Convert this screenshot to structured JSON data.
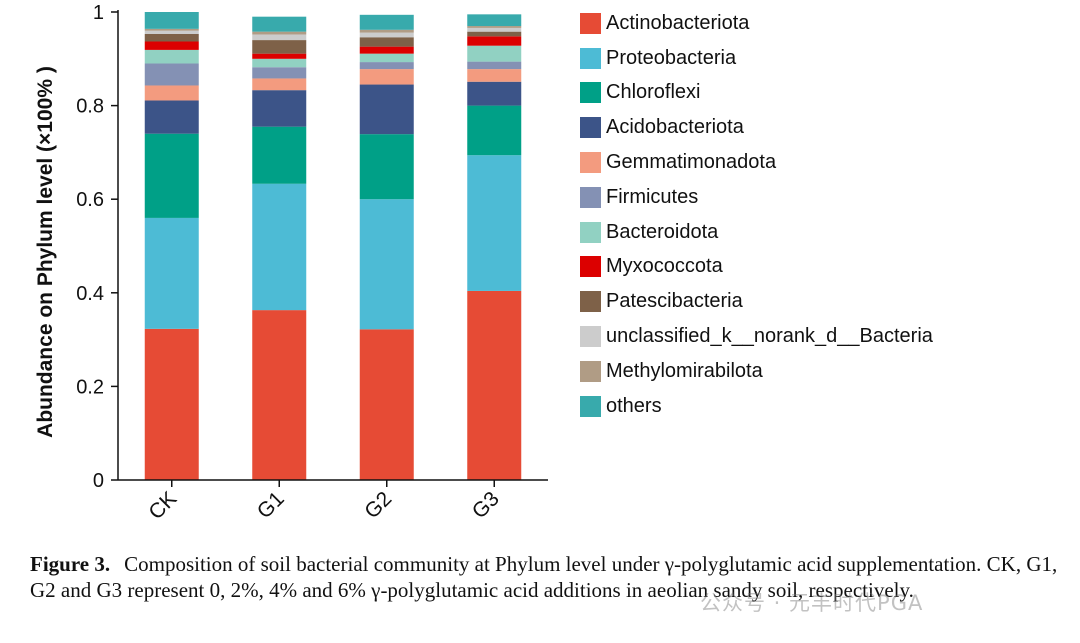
{
  "chart_data": {
    "type": "bar",
    "stacked": true,
    "title": "",
    "xlabel": "",
    "ylabel": "Abundance on Phylum level (×100% )",
    "ylim": [
      0,
      1
    ],
    "yticks": [
      "0",
      "0.2",
      "0.4",
      "0.6",
      "0.8",
      "1"
    ],
    "categories": [
      "CK",
      "G1",
      "G2",
      "G3"
    ],
    "legend_position": "right",
    "series": [
      {
        "name": "Actinobacteriota",
        "color": "#e64b35",
        "values": [
          0.323,
          0.363,
          0.322,
          0.404
        ]
      },
      {
        "name": "Proteobacteria",
        "color": "#4dbbd5",
        "values": [
          0.237,
          0.27,
          0.278,
          0.29
        ]
      },
      {
        "name": "Chloroflexi",
        "color": "#00a087",
        "values": [
          0.18,
          0.122,
          0.139,
          0.106
        ]
      },
      {
        "name": "Acidobacteriota",
        "color": "#3c5488",
        "values": [
          0.071,
          0.078,
          0.106,
          0.051
        ]
      },
      {
        "name": "Gemmatimonadota",
        "color": "#f39b7f",
        "values": [
          0.032,
          0.025,
          0.033,
          0.027
        ]
      },
      {
        "name": "Firmicutes",
        "color": "#8491b4",
        "values": [
          0.047,
          0.024,
          0.015,
          0.016
        ]
      },
      {
        "name": "Bacteroidota",
        "color": "#91d1c2",
        "values": [
          0.029,
          0.018,
          0.018,
          0.034
        ]
      },
      {
        "name": "Myxococcota",
        "color": "#dc0000",
        "values": [
          0.018,
          0.011,
          0.015,
          0.02
        ]
      },
      {
        "name": "Patescibacteria",
        "color": "#7e6148",
        "values": [
          0.016,
          0.029,
          0.02,
          0.01
        ]
      },
      {
        "name": "unclassified_k__norank_d__Bacteria",
        "color": "#cccccc",
        "values": [
          0.007,
          0.012,
          0.01,
          0.008
        ]
      },
      {
        "name": "Methylomirabilota",
        "color": "#b09c85",
        "values": [
          0.004,
          0.006,
          0.006,
          0.004
        ]
      },
      {
        "name": "others",
        "color": "#38aaac",
        "values": [
          0.036,
          0.032,
          0.032,
          0.025
        ]
      }
    ]
  },
  "caption": {
    "label": "Figure 3.",
    "text": "Composition of soil bacterial community at Phylum level under γ-polyglutamic acid supplementation. CK, G1, G2 and G3 represent 0, 2%, 4% and 6% γ-polyglutamic acid additions in aeolian sandy soil, respectively."
  },
  "watermark": "公众号 · 元丰时代PGA"
}
